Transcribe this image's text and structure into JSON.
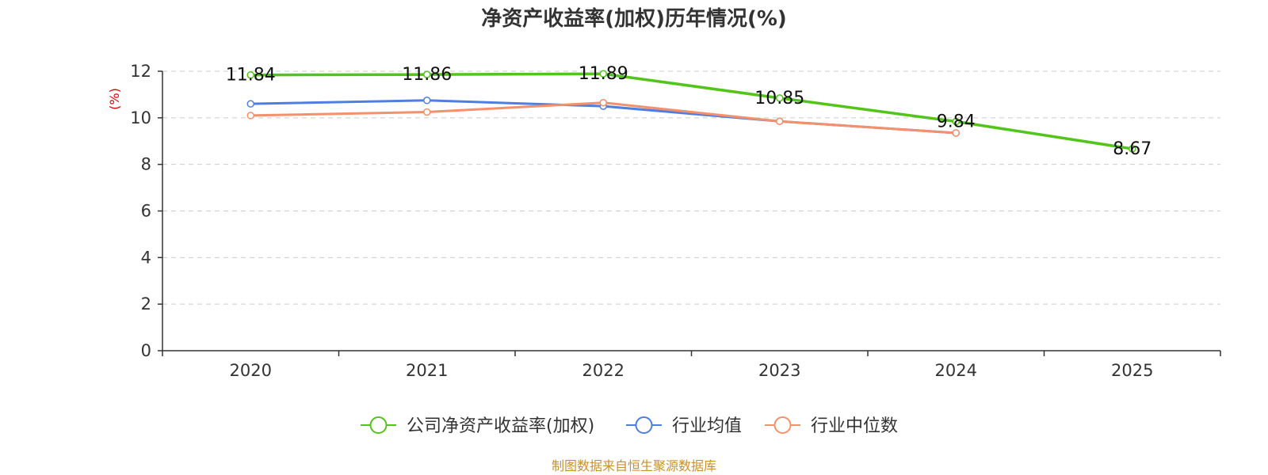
{
  "chart_data": {
    "type": "line",
    "title": "净资产收益率(加权)历年情况(%)",
    "ylabel": "(%)",
    "categories": [
      "2020",
      "2021",
      "2022",
      "2023",
      "2024",
      "2025"
    ],
    "ylim": [
      0,
      12
    ],
    "yticks": [
      "0",
      "2",
      "4",
      "6",
      "8",
      "10",
      "12"
    ],
    "grid": true,
    "legend_position": "bottom",
    "series": [
      {
        "name": "公司净资产收益率(加权)",
        "color": "#52c41a",
        "values": [
          11.84,
          11.86,
          11.89,
          10.85,
          9.84,
          8.67
        ],
        "labels": [
          "11.84",
          "11.86",
          "11.89",
          "10.85",
          "9.84",
          "8.67"
        ]
      },
      {
        "name": "行业均值",
        "color": "#4e7fe0",
        "values": [
          10.6,
          10.75,
          10.5,
          9.85,
          9.35,
          null
        ]
      },
      {
        "name": "行业中位数",
        "color": "#f4906a",
        "values": [
          10.1,
          10.25,
          10.65,
          9.85,
          9.35,
          null
        ]
      }
    ]
  },
  "source": "制图数据来自恒生聚源数据库"
}
